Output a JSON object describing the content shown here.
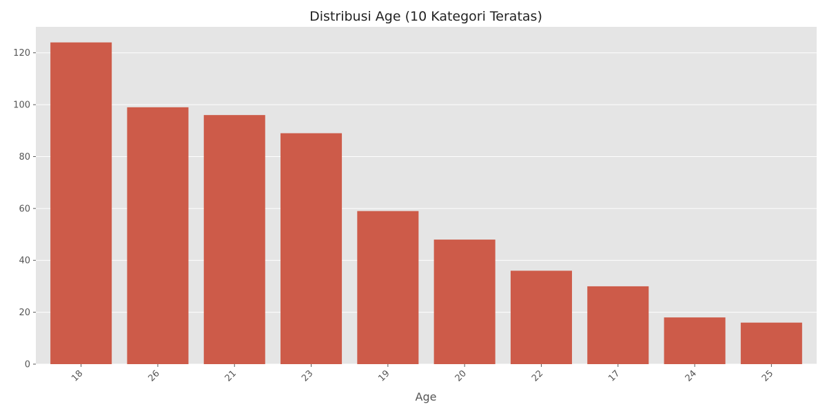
{
  "chart_data": {
    "type": "bar",
    "title": "Distribusi Age (10 Kategori Teratas)",
    "xlabel": "Age",
    "ylabel": "",
    "categories": [
      "18",
      "26",
      "21",
      "23",
      "19",
      "20",
      "22",
      "17",
      "24",
      "25"
    ],
    "values": [
      124,
      99,
      96,
      89,
      59,
      48,
      36,
      30,
      18,
      16
    ],
    "ylim": [
      0,
      130
    ],
    "yticks": [
      0,
      20,
      40,
      60,
      80,
      100,
      120
    ],
    "grid": true,
    "legend": "none",
    "colors": {
      "bar": "#CD5B49",
      "background": "#E5E5E5",
      "grid": "#FFFFFF",
      "tick": "#555555"
    }
  }
}
